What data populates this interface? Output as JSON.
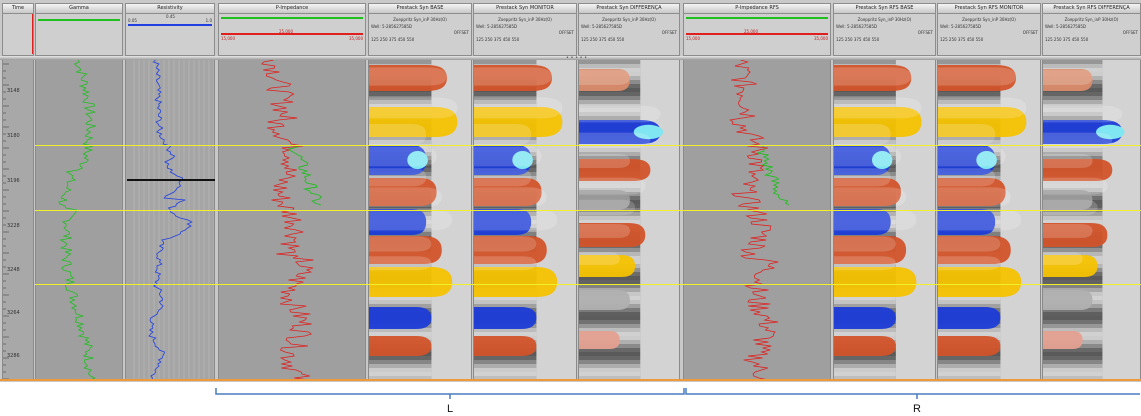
{
  "tracks": {
    "time": {
      "title": "Time"
    },
    "gr": {
      "title": "Gamma",
      "color": "#1fbf1f"
    },
    "resistivity": {
      "title": "Resistivity",
      "top_value": "0.05",
      "mid_value": "0.45",
      "end_value": "1.0",
      "color": "#1f3fe0"
    },
    "pimp_l": {
      "title": "P-Impedance",
      "color_green": "#1fbf1f",
      "color_red": "#e0201f",
      "min": "15,000",
      "mid": "25,000",
      "max": "35,000"
    },
    "g1": {
      "title": "Prestack Syn BASE",
      "subtitle": "Zoeppritz Syn_inP 30Hz(O)",
      "well": "Well: 5-285627585D",
      "offset_label": "OFFSET",
      "offsets": "125   250   375   450   550"
    },
    "g2": {
      "title": "Prestack Syn MONITOR",
      "subtitle": "Zoeppritz Syn_inP 30Hz(O)",
      "well": "Well: 5-285627585D",
      "offset_label": "OFFSET",
      "offsets": "125   250   375   450   550"
    },
    "g3": {
      "title": "Prestack Syn DIFFERENÇA",
      "subtitle": "Zoeppritz Syn_inP 30Hz(O)",
      "well": "Well: 5-285627585D",
      "offset_label": "OFFSET",
      "offsets": "125   250   375   450   550"
    },
    "pimp_r": {
      "title": "P-Impedance RFS",
      "color_green": "#1fbf1f",
      "color_red": "#e0201f",
      "min": "15,000",
      "mid": "25,000",
      "max": "35,000"
    },
    "g4": {
      "title": "Prestack Syn RFS BASE",
      "subtitle": "Zoeppritz Syn_inP 30Hz(O)",
      "well": "Well: 5-285627585D",
      "offset_label": "OFFSET",
      "offsets": "125   250   375   450   550"
    },
    "g5": {
      "title": "Prestack Syn RFS MONITOR",
      "subtitle": "Zoeppritz Syn_inP 30Hz(O)",
      "well": "Well: 5-285627585D",
      "offset_label": "OFFSET",
      "offsets": "125   250   375   450   550"
    },
    "g6": {
      "title": "Prestack Syn RFS DIFFERENÇA",
      "subtitle": "Zoeppritz Syn_inP 30Hz(O)",
      "well": "Well: 5-285627585D",
      "offset_label": "OFFSET",
      "offsets": "125   250   375   450   550"
    }
  },
  "depth_labels": [
    "3148",
    "3180",
    "3196",
    "3228",
    "3248",
    "3264",
    "3286"
  ],
  "horizons": {
    "color": "#f1ef27"
  },
  "brackets": {
    "left_label": "L",
    "right_label": "R",
    "color": "#4a7cc0"
  },
  "colors": {
    "red_lobe": "#d2542a",
    "yellow_lobe": "#f6c200",
    "blue_lobe": "#1c3dd8",
    "cyan_core": "#7fe6f2",
    "grey_bg": "#a3a3a3",
    "light_grey": "#d3d3d3"
  }
}
